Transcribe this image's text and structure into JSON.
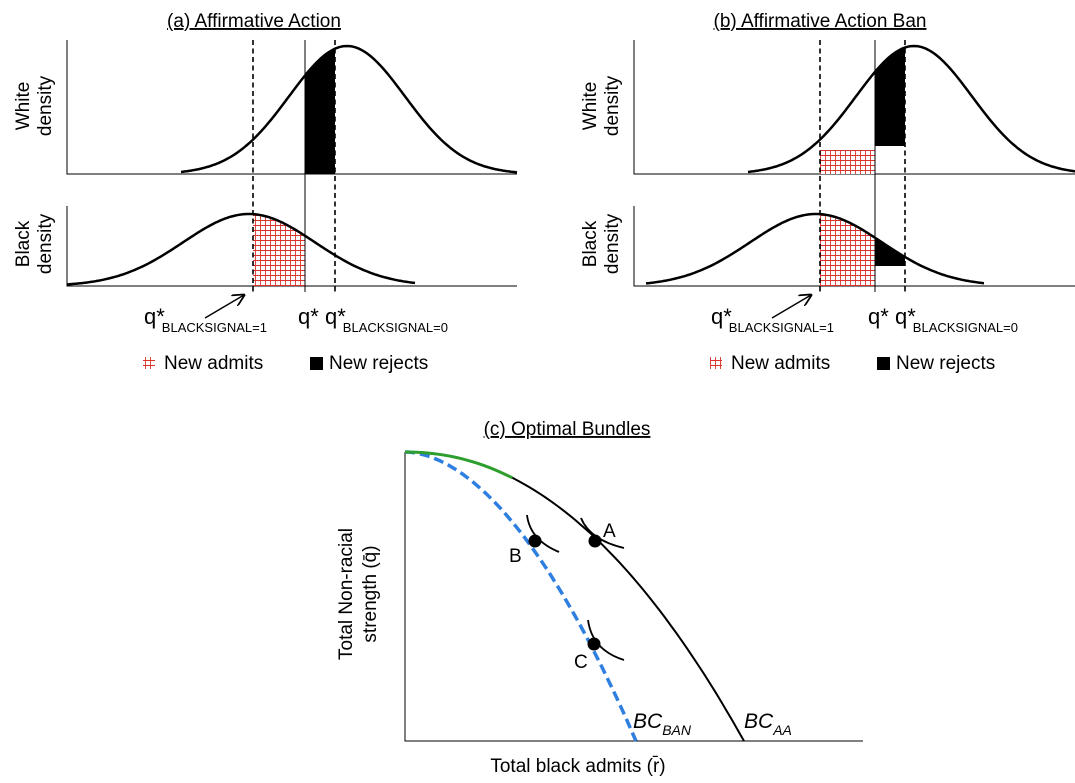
{
  "panel_a": {
    "title": "(a) Affirmative Action",
    "white_label": [
      "White",
      "density"
    ],
    "black_label": [
      "Black",
      "density"
    ],
    "q_black1": {
      "main": "q*",
      "sub": "BLACKSIGNAL=1"
    },
    "q_star": "q*",
    "q_black0": {
      "main": "q*",
      "sub": "BLACKSIGNAL=0"
    },
    "legend_admits": "New admits",
    "legend_rejects": "New rejects"
  },
  "panel_b": {
    "title": "(b) Affirmative Action Ban",
    "white_label": [
      "White",
      "density"
    ],
    "black_label": [
      "Black",
      "density"
    ],
    "q_black1": {
      "main": "q*",
      "sub": "BLACKSIGNAL=1"
    },
    "q_star": "q*",
    "q_black0": {
      "main": "q*",
      "sub": "BLACKSIGNAL=0"
    },
    "legend_admits": "New admits",
    "legend_rejects": "New rejects"
  },
  "panel_c": {
    "title": "(c) Optimal Bundles",
    "ylabel": [
      "Total Non-racial",
      "strength (q̄)"
    ],
    "xlabel": "Total black admits (r̄)",
    "point_a": "A",
    "point_b": "B",
    "point_c": "C",
    "bc_ban": {
      "main": "BC",
      "sub": "BAN"
    },
    "bc_aa": {
      "main": "BC",
      "sub": "AA"
    }
  },
  "colors": {
    "hatch": "#d9342b",
    "curve": "#000000",
    "ban_curve": "#2f7fe0",
    "overlap": "#2e9e2e"
  }
}
